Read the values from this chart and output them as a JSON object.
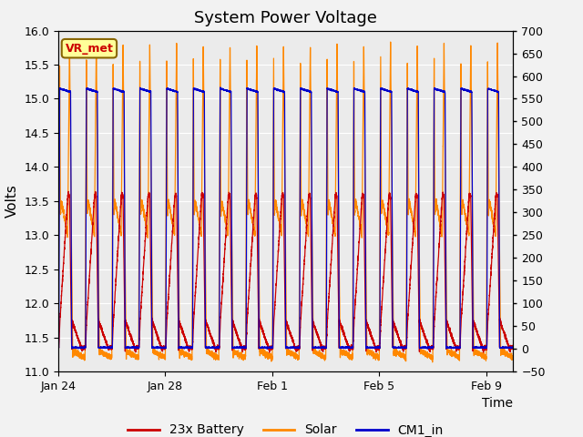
{
  "title": "System Power Voltage",
  "xlabel": "Time",
  "ylabel": "Volts",
  "ylim_left": [
    11.0,
    16.0
  ],
  "ylim_right": [
    -50,
    700
  ],
  "yticks_left": [
    11.0,
    11.5,
    12.0,
    12.5,
    13.0,
    13.5,
    14.0,
    14.5,
    15.0,
    15.5,
    16.0
  ],
  "yticks_right": [
    -50,
    0,
    50,
    100,
    150,
    200,
    250,
    300,
    350,
    400,
    450,
    500,
    550,
    600,
    650,
    700
  ],
  "xtick_labels": [
    "Jan 24",
    "Jan 28",
    "Feb 1",
    "Feb 5",
    "Feb 9"
  ],
  "xtick_positions": [
    0,
    4,
    8,
    12,
    16
  ],
  "legend_labels": [
    "23x Battery",
    "Solar",
    "CM1_in"
  ],
  "legend_colors": [
    "#cc0000",
    "#ff8800",
    "#0000cc"
  ],
  "annotation_text": "VR_met",
  "annotation_color": "#cc0000",
  "annotation_bg": "#ffff99",
  "annotation_border": "#886600",
  "total_days": 17
}
